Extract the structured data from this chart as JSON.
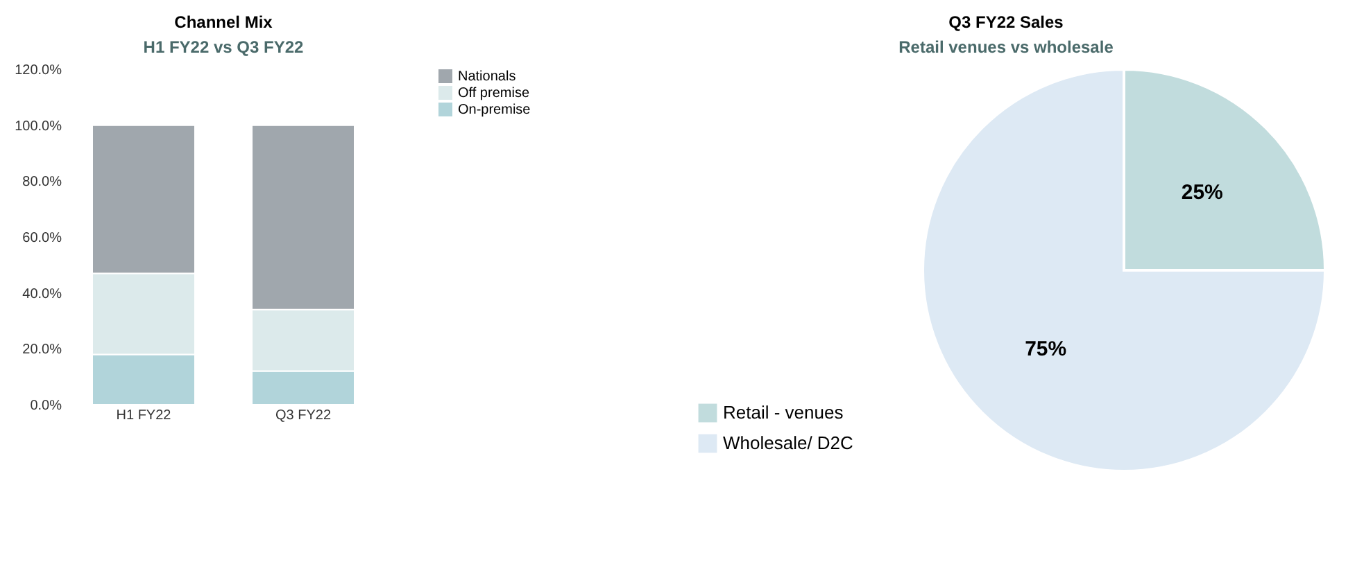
{
  "chart_data": [
    {
      "type": "bar",
      "title": "Channel Mix",
      "subtitle": "H1 FY22 vs Q3 FY22",
      "categories": [
        "H1 FY22",
        "Q3 FY22"
      ],
      "stacked": true,
      "series": [
        {
          "name": "On-premise",
          "color": "#b1d4da",
          "values": [
            18,
            12
          ]
        },
        {
          "name": "Off premise",
          "color": "#dceaeb",
          "values": [
            29,
            22
          ]
        },
        {
          "name": "Nationals",
          "color": "#a0a7ad",
          "values": [
            53,
            66
          ]
        }
      ],
      "ylim": [
        0,
        120
      ],
      "yticks": [
        {
          "value": 0,
          "label": "0.0%"
        },
        {
          "value": 20,
          "label": "20.0%"
        },
        {
          "value": 40,
          "label": "40.0%"
        },
        {
          "value": 60,
          "label": "60.0%"
        },
        {
          "value": 80,
          "label": "80.0%"
        },
        {
          "value": 100,
          "label": "100.0%"
        },
        {
          "value": 120,
          "label": "120.0%"
        }
      ],
      "grid": false,
      "legend": "right"
    },
    {
      "type": "pie",
      "title": "Q3 FY22 Sales",
      "subtitle": "Retail venues vs wholesale",
      "categories": [
        "Retail - venues",
        "Wholesale/ D2C"
      ],
      "values": [
        25,
        75
      ],
      "colors": [
        "#c1dcdd",
        "#dde9f4"
      ],
      "value_labels": [
        "25%",
        "75%"
      ],
      "legend": "bottom left"
    }
  ]
}
